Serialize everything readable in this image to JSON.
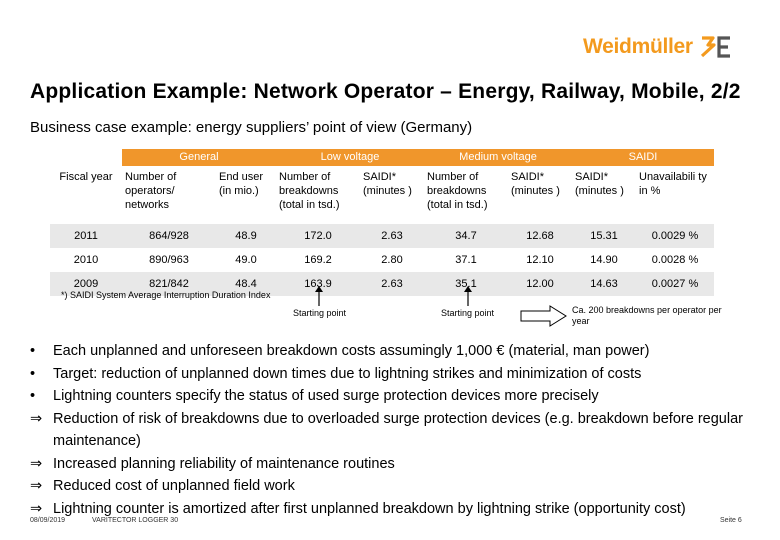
{
  "logo": {
    "text": "Weidmüller",
    "mark": "3E"
  },
  "title": "Application Example: Network Operator – Energy, Railway, Mobile, 2/2",
  "subtitle": "Business case example: energy suppliers’ point of view (Germany)",
  "table": {
    "groups": [
      "General",
      "Low voltage",
      "Medium voltage",
      "SAIDI"
    ],
    "subheaders": [
      "Fiscal year",
      "Number of operators/ networks",
      "End user (in mio.)",
      "Number of breakdowns (total in tsd.)",
      "SAIDI* (minutes )",
      "Number of breakdowns (total in tsd.)",
      "SAIDI* (minutes )",
      "SAIDI* (minutes )",
      "Unavailabili ty in %"
    ],
    "rows": [
      [
        "2011",
        "864/928",
        "48.9",
        "172.0",
        "2.63",
        "34.7",
        "12.68",
        "15.31",
        "0.0029 %"
      ],
      [
        "2010",
        "890/963",
        "49.0",
        "169.2",
        "2.80",
        "37.1",
        "12.10",
        "14.90",
        "0.0028 %"
      ],
      [
        "2009",
        "821/842",
        "48.4",
        "163.9",
        "2.63",
        "35.1",
        "12.00",
        "14.63",
        "0.0027 %"
      ]
    ]
  },
  "footnote": "*) SAIDI System Average Interruption Duration Index",
  "annotations": {
    "starting_point": "Starting point",
    "callout": "Ca. 200 breakdowns per operator per year"
  },
  "bullets": [
    {
      "marker": "•",
      "text": "Each unplanned and unforeseen breakdown costs assumingly 1,000 € (material, man power)"
    },
    {
      "marker": "•",
      "text": "Target: reduction of unplanned down times due to lightning strikes and minimization of costs"
    },
    {
      "marker": "•",
      "text": "Lightning counters specify the status of used surge protection devices more precisely"
    },
    {
      "marker": "⇒",
      "text": "Reduction of risk of breakdowns due to overloaded surge protection devices (e.g. breakdown before regular maintenance)"
    },
    {
      "marker": "⇒",
      "text": "Increased planning reliability of maintenance routines"
    },
    {
      "marker": "⇒",
      "text": "Reduced cost of unplanned field work"
    },
    {
      "marker": "⇒",
      "text": "Lightning counter is amortized after first unplanned breakdown by lightning strike (opportunity cost)"
    }
  ],
  "footer": {
    "date": "08/09/2019",
    "product": "VARITECTOR LOGGER 30",
    "page": "Seite 6"
  },
  "colors": {
    "accent": "#f0962b",
    "logo": "#f39a1e",
    "row_alt": "#e8e8e8"
  }
}
